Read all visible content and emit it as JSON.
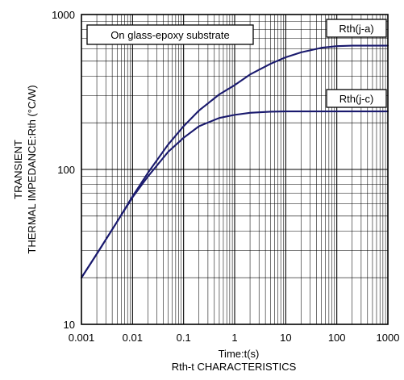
{
  "chart_data": {
    "type": "line",
    "title": "",
    "caption": "Rth-t  CHARACTERISTICS",
    "xlabel": "Time:t(s)",
    "ylabel_lines": [
      "TRANSIENT",
      "THERMAL IMPEDANCE:Rth (°C/W)"
    ],
    "x_scale": "log",
    "y_scale": "log",
    "xlim": [
      0.001,
      1000
    ],
    "ylim": [
      10,
      1000
    ],
    "x_ticks": [
      {
        "value": 0.001,
        "label": "0.001"
      },
      {
        "value": 0.01,
        "label": "0.01"
      },
      {
        "value": 0.1,
        "label": "0.1"
      },
      {
        "value": 1,
        "label": "1"
      },
      {
        "value": 10,
        "label": "10"
      },
      {
        "value": 100,
        "label": "100"
      },
      {
        "value": 1000,
        "label": "1000"
      }
    ],
    "y_ticks": [
      {
        "value": 10,
        "label": "10"
      },
      {
        "value": 100,
        "label": "100"
      },
      {
        "value": 1000,
        "label": "1000"
      }
    ],
    "grid": true,
    "condition_label": "On glass-epoxy substrate",
    "series": [
      {
        "name": "Rth(j-a)",
        "color": "#1a1a6e",
        "x": [
          0.001,
          0.002,
          0.005,
          0.01,
          0.02,
          0.05,
          0.1,
          0.2,
          0.5,
          1,
          2,
          5,
          10,
          20,
          50,
          100,
          200,
          500,
          1000
        ],
        "y": [
          20,
          28.5,
          46,
          67,
          95,
          145,
          190,
          240,
          305,
          350,
          410,
          480,
          530,
          570,
          610,
          625,
          630,
          630,
          630
        ]
      },
      {
        "name": "Rth(j-c)",
        "color": "#1a1a6e",
        "x": [
          0.001,
          0.002,
          0.005,
          0.01,
          0.02,
          0.05,
          0.1,
          0.2,
          0.5,
          1,
          2,
          5,
          10,
          20,
          50,
          100,
          200,
          500,
          1000
        ],
        "y": [
          20,
          28.5,
          46,
          66,
          90,
          130,
          160,
          190,
          215,
          225,
          232,
          236,
          237,
          237,
          237,
          237,
          237,
          237,
          237
        ]
      }
    ]
  }
}
